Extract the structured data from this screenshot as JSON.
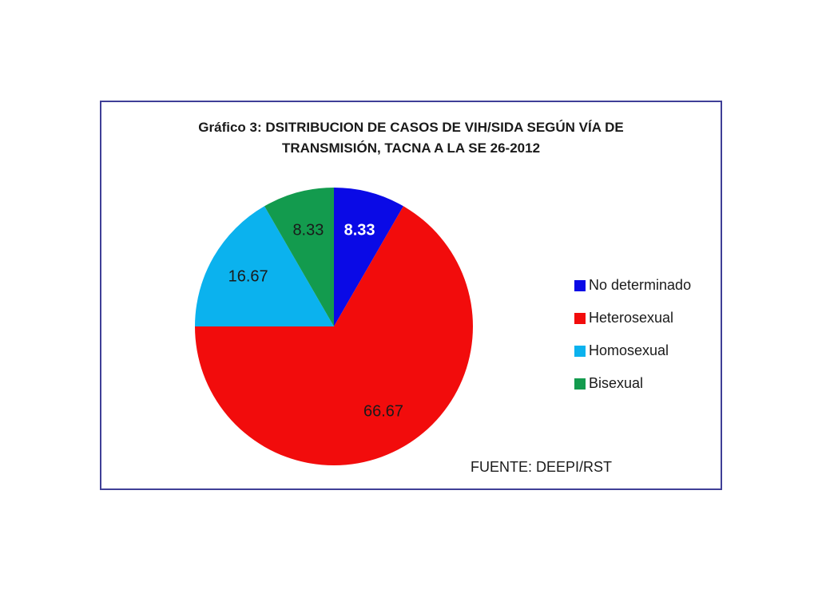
{
  "chart_data": {
    "type": "pie",
    "title_line1": "Gráfico 3: DSITRIBUCION DE CASOS DE VIH/SIDA SEGÚN VÍA DE",
    "title_line2": "TRANSMISIÓN, TACNA A LA SE 26-2012",
    "start_angle": 0,
    "direction": "clockwise",
    "slices": [
      {
        "label": "No determinado",
        "value": 8.33,
        "color": "#0a0ae6",
        "label_color": "#ffffff"
      },
      {
        "label": "Heterosexual",
        "value": 66.67,
        "color": "#f20c0c",
        "label_color": "#1a1a1a"
      },
      {
        "label": "Homosexual",
        "value": 16.67,
        "color": "#0bb2ee",
        "label_color": "#1a1a1a"
      },
      {
        "label": "Bisexual",
        "value": 8.33,
        "color": "#139b4e",
        "label_color": "#1a1a1a"
      }
    ],
    "legend_position": "right",
    "source": "FUENTE: DEEPI/RST"
  }
}
